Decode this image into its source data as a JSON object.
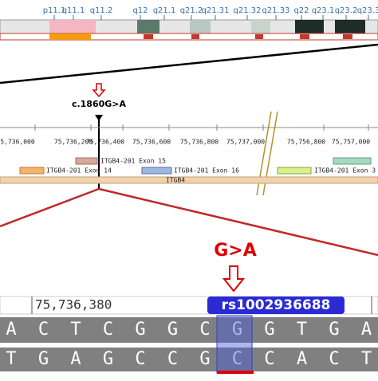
{
  "ideogram": {
    "bands": [
      "p11.1",
      "q11.1",
      "q11.2",
      "q12",
      "q21.1",
      "q21.2",
      "q21.31",
      "q21.32",
      "q21.33",
      "q22",
      "q23.1",
      "q23.2",
      "q23.3"
    ]
  },
  "variant": {
    "label": "c.1860G>A"
  },
  "track": {
    "coordinates": [
      "5,736,000",
      "75,736,200",
      "75,736,400",
      "75,736,600",
      "75,736,800",
      "75,737,000",
      "75,756,800",
      "75,757,000"
    ],
    "exons": [
      "ITGB4-201 Exon 14",
      "ITGB4-201 Exon 15",
      "ITGB4-201 Exon 16",
      "ITGB4-201 Exon 3"
    ],
    "gene": "ITGB4"
  },
  "zoom": {
    "change": "G>A",
    "coordinate": "75,736,380",
    "rsid": "rs1002936688",
    "rows": [
      [
        "A",
        "C",
        "T",
        "C",
        "G",
        "G",
        "C",
        "G",
        "G",
        "T",
        "G",
        "A"
      ],
      [
        "T",
        "G",
        "A",
        "G",
        "C",
        "C",
        "G",
        "C",
        "C",
        "A",
        "C",
        "T"
      ]
    ]
  }
}
